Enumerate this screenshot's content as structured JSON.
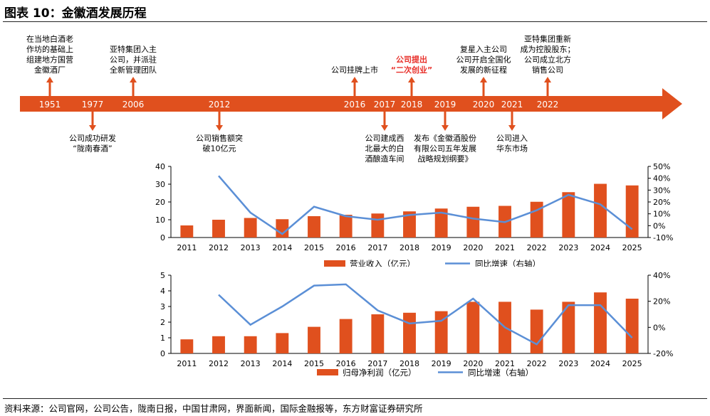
{
  "header": {
    "title": "图表 10：金徽酒发展历程"
  },
  "footer": {
    "source": "资料来源：公司官网，公司公告，陇南日报，中国甘肃网，界面新闻，国际金融报等，东方财富证券研究所"
  },
  "colors": {
    "accent": "#E0501E",
    "line": "#5B8FD6",
    "highlight": "#E8302A"
  },
  "timeline": {
    "years": [
      "1951",
      "1977",
      "2006",
      "2012",
      "2016",
      "2017",
      "2018",
      "2019",
      "2020",
      "2021",
      "2022"
    ],
    "events": [
      {
        "year": "1951",
        "side": "above",
        "lines": [
          "在当地白酒老",
          "作坊的基础上",
          "组建地方国营",
          "金徽酒厂"
        ]
      },
      {
        "year": "1977",
        "side": "below",
        "lines": [
          "公司成功研发",
          "“陇南春酒”"
        ]
      },
      {
        "year": "2006",
        "side": "above",
        "lines": [
          "亚特集团入主",
          "公司，并派驻",
          "全新管理团队"
        ]
      },
      {
        "year": "2012",
        "side": "below",
        "lines": [
          "公司销售额突",
          "破10亿元"
        ]
      },
      {
        "year": "2016",
        "side": "above",
        "lines": [
          "公司挂牌上市"
        ]
      },
      {
        "year": "2017",
        "side": "below",
        "lines": [
          "公司建成西",
          "北最大的白",
          "酒酿造车间"
        ]
      },
      {
        "year": "2018",
        "side": "above",
        "highlight": true,
        "lines": [
          "公司提出",
          "“二次创业”"
        ]
      },
      {
        "year": "2019",
        "side": "below",
        "lines": [
          "发布《金徽酒股份",
          "有限公司五年发展",
          "战略规划纲要》"
        ]
      },
      {
        "year": "2020",
        "side": "above",
        "lines": [
          "复星入主公司",
          "公司开启全国化",
          "发展的新征程"
        ]
      },
      {
        "year": "2021",
        "side": "below",
        "lines": [
          "公司进入",
          "华东市场"
        ]
      },
      {
        "year": "2022",
        "side": "above",
        "lines": [
          "亚特集团重新",
          "成为控股股东；",
          "公司成立北方",
          "销售公司"
        ]
      }
    ]
  },
  "chart_data": [
    {
      "type": "bar",
      "categories": [
        "2011",
        "2012",
        "2013",
        "2014",
        "2015",
        "2016",
        "2017",
        "2018",
        "2019",
        "2020",
        "2021",
        "2022",
        "2023",
        "2024",
        "2025"
      ],
      "series": [
        {
          "name": "营业收入（亿元）",
          "type": "bar",
          "axis": "left",
          "values": [
            6.8,
            10.0,
            11.0,
            10.3,
            12.0,
            12.8,
            13.5,
            14.7,
            16.3,
            17.3,
            17.8,
            20.1,
            25.5,
            30.2,
            29.3
          ]
        },
        {
          "name": "同比增速（右轴）",
          "type": "line",
          "axis": "right",
          "values": [
            null,
            42,
            11,
            -7,
            16,
            8,
            5,
            9,
            11,
            6,
            3,
            13,
            26,
            18,
            -3
          ]
        }
      ],
      "ylim": [
        0,
        40
      ],
      "yticks": [
        "0",
        "10",
        "20",
        "30",
        "40"
      ],
      "ylim_right": [
        -10,
        50
      ],
      "yticks_right": [
        "-10%",
        "0%",
        "10%",
        "20%",
        "30%",
        "40%",
        "50%"
      ],
      "legend_position": "bottom"
    },
    {
      "type": "bar",
      "categories": [
        "2011",
        "2012",
        "2013",
        "2014",
        "2015",
        "2016",
        "2017",
        "2018",
        "2019",
        "2020",
        "2021",
        "2022",
        "2023",
        "2024",
        "2025"
      ],
      "series": [
        {
          "name": "归母净利润（亿元）",
          "type": "bar",
          "axis": "left",
          "values": [
            0.9,
            1.1,
            1.1,
            1.3,
            1.7,
            2.2,
            2.5,
            2.6,
            2.7,
            3.3,
            3.3,
            2.8,
            3.3,
            3.9,
            3.5
          ]
        },
        {
          "name": "同比增速（右轴）",
          "type": "line",
          "axis": "right",
          "values": [
            null,
            25,
            2,
            16,
            32,
            33,
            13,
            3,
            5,
            22,
            0,
            -13,
            17,
            17,
            -8
          ]
        }
      ],
      "ylim": [
        0,
        5
      ],
      "yticks": [
        "0",
        "1",
        "2",
        "3",
        "4",
        "5"
      ],
      "ylim_right": [
        -20,
        40
      ],
      "yticks_right": [
        "-20%",
        "0%",
        "20%",
        "40%"
      ],
      "legend_position": "bottom"
    }
  ]
}
